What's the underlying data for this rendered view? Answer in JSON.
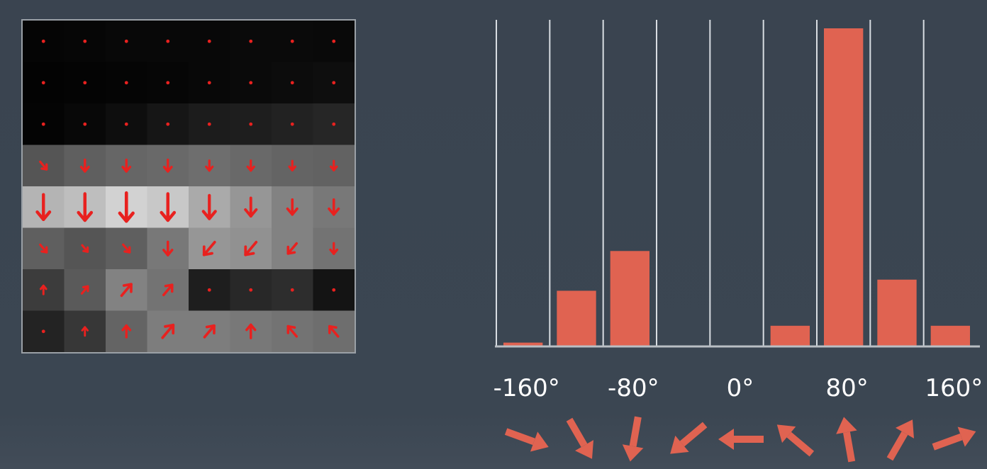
{
  "gradient_grid": {
    "rows": 8,
    "cols": 8,
    "arrow_color": "#e8211f",
    "cells": [
      [
        {
          "shade": 5,
          "dir": "none",
          "mag": 0
        },
        {
          "shade": 6,
          "dir": "none",
          "mag": 0
        },
        {
          "shade": 8,
          "dir": "none",
          "mag": 0
        },
        {
          "shade": 8,
          "dir": "none",
          "mag": 0
        },
        {
          "shade": 8,
          "dir": "none",
          "mag": 0
        },
        {
          "shade": 10,
          "dir": "none",
          "mag": 0
        },
        {
          "shade": 10,
          "dir": "none",
          "mag": 0
        },
        {
          "shade": 9,
          "dir": "none",
          "mag": 0
        }
      ],
      [
        {
          "shade": 3,
          "dir": "none",
          "mag": 0
        },
        {
          "shade": 4,
          "dir": "none",
          "mag": 0
        },
        {
          "shade": 5,
          "dir": "none",
          "mag": 0
        },
        {
          "shade": 6,
          "dir": "none",
          "mag": 0
        },
        {
          "shade": 8,
          "dir": "none",
          "mag": 0
        },
        {
          "shade": 10,
          "dir": "none",
          "mag": 0
        },
        {
          "shade": 12,
          "dir": "none",
          "mag": 0
        },
        {
          "shade": 14,
          "dir": "none",
          "mag": 0
        }
      ],
      [
        {
          "shade": 4,
          "dir": "none",
          "mag": 0
        },
        {
          "shade": 8,
          "dir": "none",
          "mag": 0
        },
        {
          "shade": 14,
          "dir": "none",
          "mag": 0
        },
        {
          "shade": 22,
          "dir": "none",
          "mag": 0
        },
        {
          "shade": 28,
          "dir": "none",
          "mag": 0
        },
        {
          "shade": 30,
          "dir": "none",
          "mag": 0
        },
        {
          "shade": 34,
          "dir": "none",
          "mag": 0
        },
        {
          "shade": 38,
          "dir": "none",
          "mag": 0
        }
      ],
      [
        {
          "shade": 85,
          "dir": "down-right",
          "mag": 0.3
        },
        {
          "shade": 95,
          "dir": "down",
          "mag": 0.35
        },
        {
          "shade": 102,
          "dir": "down",
          "mag": 0.35
        },
        {
          "shade": 105,
          "dir": "down",
          "mag": 0.35
        },
        {
          "shade": 110,
          "dir": "down",
          "mag": 0.3
        },
        {
          "shade": 105,
          "dir": "down",
          "mag": 0.3
        },
        {
          "shade": 100,
          "dir": "down",
          "mag": 0.28
        },
        {
          "shade": 98,
          "dir": "down",
          "mag": 0.28
        }
      ],
      [
        {
          "shade": 180,
          "dir": "down",
          "mag": 0.75
        },
        {
          "shade": 190,
          "dir": "down",
          "mag": 0.8
        },
        {
          "shade": 210,
          "dir": "down",
          "mag": 0.85
        },
        {
          "shade": 200,
          "dir": "down",
          "mag": 0.8
        },
        {
          "shade": 170,
          "dir": "down",
          "mag": 0.7
        },
        {
          "shade": 150,
          "dir": "down",
          "mag": 0.55
        },
        {
          "shade": 130,
          "dir": "down",
          "mag": 0.45
        },
        {
          "shade": 120,
          "dir": "down",
          "mag": 0.45
        }
      ],
      [
        {
          "shade": 95,
          "dir": "down-right",
          "mag": 0.3
        },
        {
          "shade": 85,
          "dir": "down-right",
          "mag": 0.25
        },
        {
          "shade": 95,
          "dir": "down-right",
          "mag": 0.3
        },
        {
          "shade": 120,
          "dir": "down",
          "mag": 0.4
        },
        {
          "shade": 150,
          "dir": "down-left",
          "mag": 0.5
        },
        {
          "shade": 145,
          "dir": "down-left",
          "mag": 0.5
        },
        {
          "shade": 130,
          "dir": "down-left",
          "mag": 0.4
        },
        {
          "shade": 115,
          "dir": "down",
          "mag": 0.32
        }
      ],
      [
        {
          "shade": 60,
          "dir": "up",
          "mag": 0.2
        },
        {
          "shade": 90,
          "dir": "up-right",
          "mag": 0.28
        },
        {
          "shade": 130,
          "dir": "up-right",
          "mag": 0.45
        },
        {
          "shade": 115,
          "dir": "up-right",
          "mag": 0.4
        },
        {
          "shade": 30,
          "dir": "none",
          "mag": 0
        },
        {
          "shade": 40,
          "dir": "none",
          "mag": 0
        },
        {
          "shade": 45,
          "dir": "none",
          "mag": 0
        },
        {
          "shade": 20,
          "dir": "none",
          "mag": 0
        }
      ],
      [
        {
          "shade": 35,
          "dir": "none",
          "mag": 0
        },
        {
          "shade": 55,
          "dir": "up",
          "mag": 0.15
        },
        {
          "shade": 100,
          "dir": "up",
          "mag": 0.35
        },
        {
          "shade": 125,
          "dir": "up-right",
          "mag": 0.5
        },
        {
          "shade": 125,
          "dir": "up-right",
          "mag": 0.45
        },
        {
          "shade": 120,
          "dir": "up",
          "mag": 0.4
        },
        {
          "shade": 115,
          "dir": "up-left",
          "mag": 0.4
        },
        {
          "shade": 110,
          "dir": "up-left",
          "mag": 0.4
        }
      ]
    ]
  },
  "chart_data": {
    "type": "bar",
    "title": "",
    "xlabel": "",
    "ylabel": "",
    "bar_color": "#e06351",
    "gridline_color": "#d8dde2",
    "axis_color": "#b9bec4",
    "grid": true,
    "bins": [
      -160,
      -120,
      -80,
      -40,
      0,
      40,
      80,
      120,
      160
    ],
    "values": [
      0.012,
      0.175,
      0.3,
      0,
      0,
      0.065,
      1.0,
      0.21,
      0.065
    ],
    "ylim": [
      0,
      1.0
    ],
    "tick_labels": [
      {
        "value": -160,
        "label": "-160°"
      },
      {
        "value": -80,
        "label": "-80°"
      },
      {
        "value": 0,
        "label": "0°"
      },
      {
        "value": 80,
        "label": "80°"
      },
      {
        "value": 160,
        "label": "160°"
      }
    ],
    "direction_icons": [
      "arrow-up-left-icon",
      "arrow-up-left-steep-icon",
      "arrow-up-icon",
      "arrow-up-right-icon",
      "arrow-right-icon",
      "arrow-down-right-icon",
      "arrow-down-icon",
      "arrow-down-left-icon",
      "arrow-left-down-icon"
    ],
    "direction_angles": [
      -160,
      -120,
      -80,
      -40,
      0,
      40,
      80,
      120,
      160
    ]
  }
}
